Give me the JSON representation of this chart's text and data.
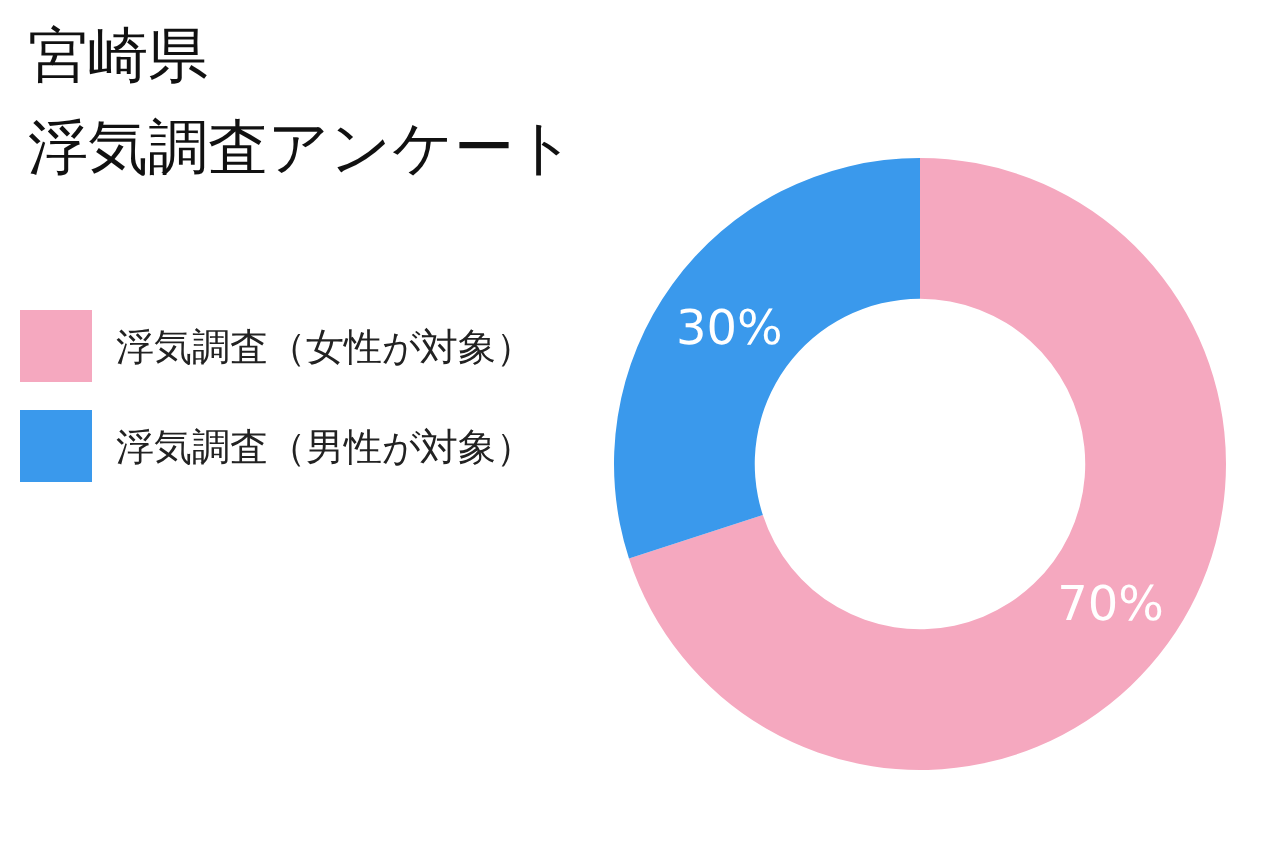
{
  "chart_data": {
    "type": "donut",
    "title": "宮崎県",
    "subtitle": "浮気調査アンケート",
    "categories": [
      "浮気調査（女性が対象）",
      "浮気調査（男性が対象）"
    ],
    "values": [
      70,
      30
    ],
    "value_labels": [
      "70%",
      "30%"
    ],
    "colors": [
      "#f5a8bf",
      "#3a99ec"
    ],
    "legend": "left"
  }
}
